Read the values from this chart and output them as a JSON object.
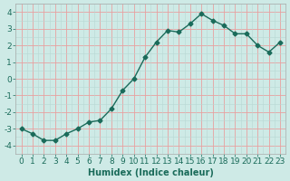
{
  "x": [
    0,
    1,
    2,
    3,
    4,
    5,
    6,
    7,
    8,
    9,
    10,
    11,
    12,
    13,
    14,
    15,
    16,
    17,
    18,
    19,
    20,
    21,
    22,
    23
  ],
  "y": [
    -3.0,
    -3.3,
    -3.7,
    -3.7,
    -3.3,
    -3.0,
    -2.6,
    -2.5,
    -1.8,
    -0.7,
    0.0,
    1.3,
    2.2,
    2.9,
    2.8,
    3.3,
    3.9,
    3.5,
    3.2,
    2.7,
    2.7,
    2.0,
    1.6,
    2.2
  ],
  "line_color": "#1a6b5a",
  "marker": "D",
  "marker_size": 2.5,
  "bg_color": "#ceeae6",
  "grid_color_major": "#e8b0b0",
  "grid_color_minor": "#d8e8e6",
  "xlabel": "Humidex (Indice chaleur)",
  "ylim": [
    -4.5,
    4.5
  ],
  "xlim": [
    -0.5,
    23.5
  ],
  "yticks": [
    -4,
    -3,
    -2,
    -1,
    0,
    1,
    2,
    3,
    4
  ],
  "xticks": [
    0,
    1,
    2,
    3,
    4,
    5,
    6,
    7,
    8,
    9,
    10,
    11,
    12,
    13,
    14,
    15,
    16,
    17,
    18,
    19,
    20,
    21,
    22,
    23
  ],
  "xlabel_fontsize": 7,
  "tick_fontsize": 6.5,
  "line_width": 1.0,
  "spine_color": "#aaaaaa"
}
